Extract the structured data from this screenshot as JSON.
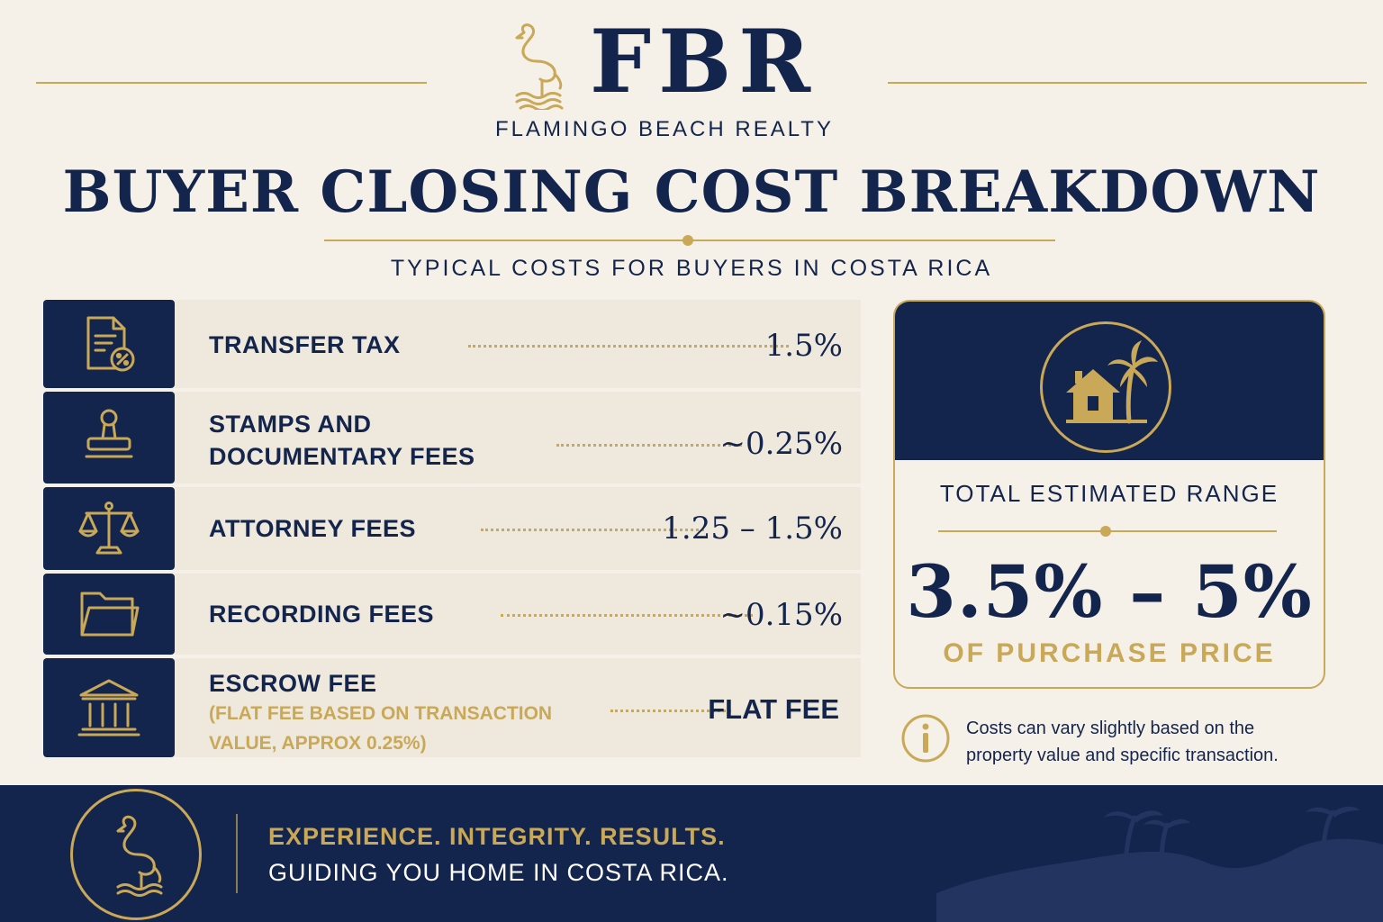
{
  "brand": {
    "monogram": "FBR",
    "name": "FLAMINGO BEACH REALTY",
    "gold": "#c9a857",
    "navy": "#14254d",
    "cream": "#f6f1e8"
  },
  "header": {
    "title": "BUYER CLOSING COST BREAKDOWN",
    "subtitle": "TYPICAL COSTS FOR BUYERS IN COSTA RICA"
  },
  "costs": [
    {
      "icon": "tax-document-icon",
      "label": "TRANSFER TAX",
      "value": "1.5%"
    },
    {
      "icon": "stamp-icon",
      "label_line1": "STAMPS AND",
      "label_line2": "DOCUMENTARY FEES",
      "value": "~0.25%"
    },
    {
      "icon": "scales-icon",
      "label": "ATTORNEY FEES",
      "value": "1.25 – 1.5%"
    },
    {
      "icon": "folder-icon",
      "label": "RECORDING FEES",
      "value": "~0.15%"
    },
    {
      "icon": "bank-icon",
      "label": "ESCROW FEE",
      "note_line1": "(FLAT FEE BASED ON TRANSACTION",
      "note_line2": "VALUE, APPROX 0.25%)",
      "value": "FLAT FEE"
    }
  ],
  "total": {
    "icon": "house-palm-icon",
    "heading": "TOTAL ESTIMATED RANGE",
    "range": "3.5% – 5%",
    "range_sub": "OF PURCHASE PRICE"
  },
  "disclaimer": {
    "icon": "info-icon",
    "line1": "Costs can vary slightly based on the",
    "line2": "property value and specific transaction."
  },
  "footer": {
    "tagline": "EXPERIENCE. INTEGRITY. RESULTS.",
    "slogan": "GUIDING YOU HOME IN COSTA RICA."
  }
}
